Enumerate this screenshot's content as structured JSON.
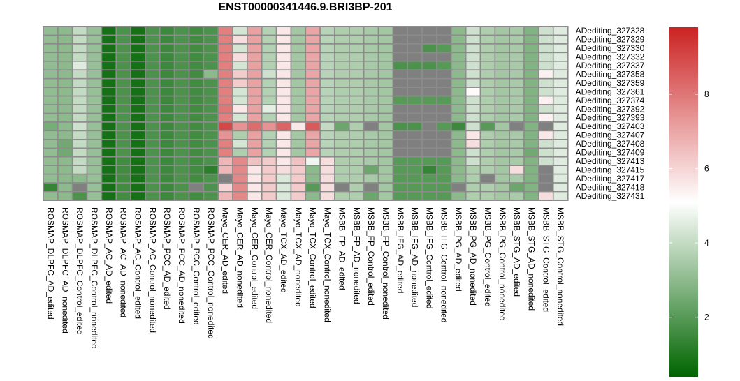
{
  "chart_data": {
    "type": "heatmap",
    "title": "ENST00000341446.9.BRI3BP-201",
    "xlabel": "",
    "ylabel": "",
    "columns": [
      "ROSMAP_DLPFC_AD_edited",
      "ROSMAP_DLPFC_AD_nonedited",
      "ROSMAP_DLPFC_Control_edited",
      "ROSMAP_DLPFC_Control_nonedited",
      "ROSMAP_AC_AD_edited",
      "ROSMAP_AC_AD_nonedited",
      "ROSMAP_AC_Control_edited",
      "ROSMAP_AC_Control_nonedited",
      "ROSMAP_PCC_AD_edited",
      "ROSMAP_PCC_AD_nonedited",
      "ROSMAP_PCC_Control_edited",
      "ROSMAP_PCC_Control_nonedited",
      "Mayo_CER_AD_edited",
      "Mayo_CER_AD_nonedited",
      "Mayo_CER_Control_edited",
      "Mayo_CER_Control_nonedited",
      "Mayo_TCX_AD_edited",
      "Mayo_TCX_AD_nonedited",
      "Mayo_TCX_Control_edited",
      "Mayo_TCX_Control_nonedited",
      "MSBB_FP_AD_edited",
      "MSBB_FP_AD_nonedited",
      "MSBB_FP_Control_edited",
      "MSBB_FP_Control_nonedited",
      "MSBB_IFG_AD_edited",
      "MSBB_IFG_AD_nonedited",
      "MSBB_IFG_Control_edited",
      "MSBB_IFG_Control_nonedited",
      "MSBB_PG_AD_edited",
      "MSBB_PG_AD_nonedited",
      "MSBB_PG_Control_edited",
      "MSBB_PG_Control_nonedited",
      "MSBB_STG_AD_edited",
      "MSBB_STG_AD_nonedited",
      "MSBB_STG_Control_edited",
      "MSBB_STG_Control_nonedited"
    ],
    "rows": [
      "ADediting_327328",
      "ADediting_327329",
      "ADediting_327330",
      "ADediting_327332",
      "ADediting_327337",
      "ADediting_327358",
      "ADediting_327359",
      "ADediting_327361",
      "ADediting_327374",
      "ADediting_327392",
      "ADediting_327393",
      "ADediting_327403",
      "ADediting_327407",
      "ADediting_327408",
      "ADediting_327409",
      "ADediting_327413",
      "ADediting_327415",
      "ADediting_327417",
      "ADediting_327418",
      "ADediting_327431"
    ],
    "values": [
      [
        3.1,
        3.0,
        4.0,
        3.2,
        0.8,
        1.8,
        0.8,
        1.8,
        1.5,
        1.8,
        1.6,
        1.8,
        7.8,
        4.3,
        7.1,
        3.7,
        5.6,
        3.4,
        7.0,
        3.8,
        3.6,
        3.6,
        3.5,
        3.4,
        null,
        null,
        null,
        null,
        3.0,
        4.2,
        3.6,
        3.4,
        3.5,
        2.8,
        4.2,
        4.5
      ],
      [
        3.1,
        3.0,
        4.0,
        3.2,
        0.8,
        1.8,
        0.8,
        1.8,
        1.5,
        1.8,
        1.6,
        1.8,
        7.8,
        5.8,
        7.1,
        3.7,
        5.6,
        3.4,
        7.0,
        3.8,
        3.6,
        3.6,
        3.5,
        3.4,
        null,
        null,
        null,
        null,
        3.0,
        4.2,
        3.6,
        3.4,
        3.5,
        2.8,
        4.2,
        4.5
      ],
      [
        3.1,
        3.0,
        4.0,
        3.2,
        0.8,
        1.8,
        0.8,
        1.8,
        1.5,
        1.8,
        1.6,
        1.8,
        7.8,
        4.3,
        7.1,
        3.7,
        5.6,
        3.4,
        7.0,
        3.8,
        3.6,
        3.6,
        3.5,
        3.4,
        null,
        null,
        1.8,
        2.0,
        3.0,
        4.2,
        3.6,
        3.4,
        3.5,
        2.8,
        4.2,
        4.5
      ],
      [
        3.1,
        3.0,
        4.0,
        3.2,
        0.8,
        1.8,
        0.8,
        1.8,
        1.5,
        1.8,
        1.6,
        1.8,
        7.8,
        5.8,
        7.1,
        3.7,
        5.6,
        3.4,
        7.0,
        3.8,
        3.6,
        3.6,
        3.5,
        3.4,
        null,
        null,
        null,
        null,
        3.0,
        4.2,
        3.6,
        3.4,
        3.5,
        2.8,
        4.2,
        4.5
      ],
      [
        3.1,
        3.0,
        4.5,
        3.2,
        0.8,
        1.8,
        0.8,
        1.8,
        1.5,
        1.8,
        1.6,
        1.8,
        7.8,
        4.3,
        7.1,
        3.7,
        5.6,
        3.4,
        7.0,
        3.8,
        3.6,
        3.6,
        3.5,
        3.4,
        1.8,
        1.8,
        1.8,
        2.0,
        3.0,
        4.2,
        3.6,
        3.4,
        3.5,
        2.8,
        4.2,
        4.5
      ],
      [
        3.1,
        3.0,
        4.0,
        3.2,
        0.8,
        1.8,
        0.8,
        1.8,
        1.5,
        1.8,
        1.6,
        3.0,
        7.8,
        6.2,
        7.1,
        4.2,
        5.6,
        3.4,
        7.0,
        3.8,
        3.6,
        3.6,
        3.5,
        3.4,
        null,
        null,
        null,
        null,
        3.0,
        4.2,
        3.6,
        3.4,
        3.5,
        2.8,
        5.4,
        4.5
      ],
      [
        3.1,
        3.0,
        4.0,
        3.2,
        0.8,
        1.8,
        0.8,
        1.8,
        1.5,
        1.8,
        1.6,
        1.8,
        7.8,
        6.2,
        7.1,
        3.7,
        5.6,
        3.4,
        7.0,
        3.8,
        3.6,
        3.6,
        3.5,
        3.4,
        null,
        null,
        null,
        null,
        3.0,
        4.2,
        3.6,
        3.4,
        3.5,
        2.8,
        4.2,
        4.5
      ],
      [
        3.1,
        3.0,
        4.0,
        3.2,
        0.8,
        1.8,
        0.8,
        1.8,
        1.5,
        1.8,
        1.6,
        1.8,
        7.8,
        4.3,
        7.1,
        3.7,
        5.6,
        3.4,
        7.0,
        3.8,
        3.6,
        3.6,
        3.5,
        3.4,
        null,
        null,
        null,
        null,
        3.0,
        5.2,
        3.6,
        3.4,
        3.5,
        2.8,
        4.2,
        4.5
      ],
      [
        3.1,
        3.0,
        4.0,
        3.2,
        0.8,
        1.8,
        0.8,
        1.8,
        1.5,
        1.8,
        1.6,
        1.8,
        7.8,
        4.3,
        7.1,
        3.7,
        5.6,
        3.4,
        7.0,
        3.8,
        3.6,
        3.6,
        3.5,
        3.4,
        2.0,
        2.0,
        2.0,
        2.0,
        3.0,
        4.2,
        3.6,
        3.4,
        3.5,
        2.8,
        5.4,
        4.5
      ],
      [
        3.1,
        3.0,
        4.0,
        3.2,
        0.8,
        1.8,
        0.8,
        1.8,
        1.5,
        1.8,
        1.6,
        1.8,
        8.0,
        5.6,
        7.1,
        4.6,
        5.6,
        3.4,
        7.0,
        3.8,
        3.6,
        3.6,
        3.5,
        3.4,
        null,
        null,
        null,
        null,
        3.0,
        4.2,
        3.6,
        3.4,
        3.5,
        2.8,
        4.2,
        4.5
      ],
      [
        3.1,
        3.0,
        4.0,
        3.2,
        0.8,
        1.8,
        0.8,
        1.8,
        1.5,
        1.8,
        1.6,
        1.8,
        7.8,
        4.3,
        7.1,
        3.7,
        5.6,
        3.4,
        7.0,
        3.8,
        3.6,
        3.6,
        3.5,
        3.4,
        null,
        null,
        null,
        null,
        3.0,
        4.2,
        3.6,
        3.4,
        3.5,
        2.8,
        5.4,
        4.5
      ],
      [
        2.6,
        3.0,
        4.2,
        3.2,
        0.8,
        1.8,
        0.8,
        1.8,
        1.5,
        1.8,
        1.6,
        1.8,
        9.0,
        7.4,
        8.2,
        7.4,
        8.4,
        5.6,
        8.6,
        4.0,
        2.4,
        3.6,
        null,
        3.4,
        1.8,
        1.8,
        null,
        2.0,
        1.5,
        4.2,
        2.0,
        3.4,
        null,
        2.8,
        null,
        4.5
      ],
      [
        3.1,
        3.0,
        4.0,
        3.2,
        0.8,
        1.8,
        0.8,
        1.8,
        1.5,
        1.8,
        1.6,
        1.8,
        7.4,
        3.6,
        7.1,
        3.7,
        5.6,
        3.4,
        7.0,
        3.8,
        3.6,
        3.6,
        3.5,
        3.4,
        null,
        null,
        null,
        null,
        3.0,
        5.6,
        3.6,
        3.4,
        3.5,
        2.8,
        5.6,
        4.5
      ],
      [
        3.1,
        2.5,
        4.0,
        3.2,
        0.8,
        1.8,
        0.8,
        1.8,
        1.5,
        1.8,
        1.6,
        1.8,
        7.8,
        4.3,
        7.1,
        3.7,
        5.6,
        3.4,
        7.0,
        3.8,
        3.6,
        3.6,
        3.5,
        3.4,
        null,
        null,
        null,
        null,
        3.0,
        5.8,
        3.6,
        3.4,
        3.5,
        2.8,
        4.2,
        4.5
      ],
      [
        3.1,
        2.5,
        4.0,
        3.2,
        0.8,
        1.8,
        0.8,
        1.8,
        1.5,
        1.8,
        1.6,
        1.8,
        7.8,
        3.6,
        7.1,
        3.7,
        5.6,
        3.4,
        7.0,
        3.8,
        3.6,
        3.6,
        3.5,
        3.4,
        null,
        null,
        null,
        null,
        3.0,
        4.2,
        3.6,
        3.4,
        3.5,
        2.5,
        4.2,
        4.5
      ],
      [
        3.1,
        3.0,
        4.0,
        3.2,
        0.8,
        1.6,
        0.8,
        1.8,
        1.5,
        1.8,
        1.6,
        1.8,
        6.6,
        7.6,
        6.4,
        6.2,
        5.6,
        6.4,
        4.8,
        5.8,
        3.6,
        3.6,
        3.5,
        3.4,
        2.0,
        2.0,
        2.0,
        2.0,
        3.0,
        4.2,
        3.6,
        3.4,
        3.5,
        2.8,
        4.2,
        4.5
      ],
      [
        3.1,
        3.0,
        4.0,
        3.2,
        0.8,
        1.6,
        0.8,
        1.8,
        1.5,
        1.8,
        1.6,
        1.2,
        6.6,
        7.6,
        5.6,
        6.2,
        5.8,
        6.2,
        3.0,
        5.8,
        3.6,
        3.6,
        2.4,
        3.4,
        2.0,
        2.0,
        1.4,
        2.0,
        3.0,
        3.6,
        3.6,
        3.4,
        5.8,
        2.8,
        null,
        4.5
      ],
      [
        3.1,
        3.0,
        3.0,
        3.2,
        0.8,
        1.6,
        0.8,
        1.8,
        1.5,
        1.8,
        1.6,
        1.8,
        null,
        7.6,
        5.6,
        6.2,
        4.4,
        6.2,
        3.0,
        5.8,
        3.6,
        3.6,
        3.5,
        3.4,
        2.0,
        2.0,
        2.0,
        2.0,
        3.0,
        3.6,
        null,
        3.4,
        3.5,
        2.8,
        null,
        4.5
      ],
      [
        1.4,
        3.0,
        null,
        3.2,
        0.8,
        1.6,
        0.8,
        1.8,
        1.5,
        1.8,
        null,
        1.8,
        6.0,
        7.6,
        5.6,
        6.2,
        4.4,
        6.2,
        2.0,
        5.8,
        null,
        3.6,
        null,
        3.4,
        2.0,
        2.0,
        2.0,
        2.0,
        null,
        3.6,
        3.6,
        3.4,
        2.4,
        2.8,
        null,
        4.5
      ],
      [
        3.1,
        3.0,
        1.8,
        3.2,
        0.8,
        1.6,
        0.8,
        1.8,
        1.5,
        1.8,
        1.6,
        1.8,
        6.6,
        7.6,
        5.6,
        6.2,
        4.4,
        6.2,
        3.0,
        5.8,
        3.6,
        3.6,
        2.4,
        3.4,
        2.0,
        2.0,
        2.0,
        2.0,
        3.0,
        3.6,
        3.6,
        3.4,
        3.5,
        2.8,
        5.8,
        4.5
      ]
    ],
    "na_color": "#808080",
    "color_range": [
      0.4,
      9.8
    ],
    "color_stops": [
      "#006400",
      "#ffffff",
      "#cc2222"
    ],
    "legend": {
      "ticks": [
        2,
        4,
        6,
        8
      ],
      "labels": [
        "2",
        "4",
        "6",
        "8"
      ],
      "placement": "right"
    }
  }
}
